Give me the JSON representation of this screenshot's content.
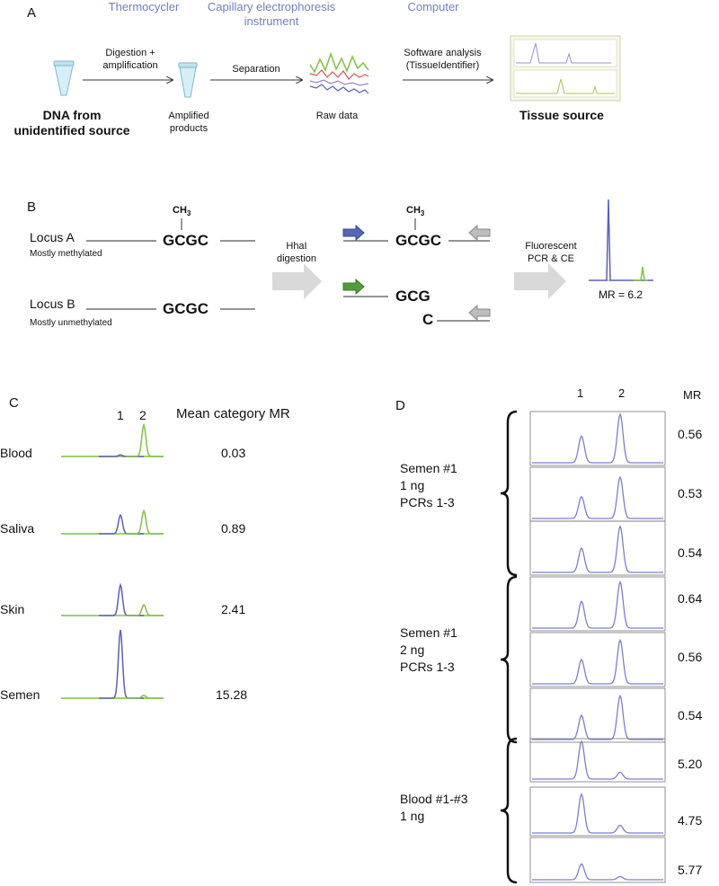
{
  "panelA": {
    "letter": "A",
    "stages": [
      "Thermocycler",
      "Capillary electrophoresis instrument",
      "Computer"
    ],
    "stage_line2": "instrument",
    "stage_ce_line1": "Capillary electrophoresis",
    "source_line1": "DNA from",
    "source_line2": "unidentified source",
    "step1_line1": "Digestion +",
    "step1_line2": "amplification",
    "products_line1": "Amplified",
    "products_line2": "products",
    "step2": "Separation",
    "raw_data": "Raw data",
    "step3_line1": "Software analysis",
    "step3_line2": "(TissueIdentifier)",
    "result": "Tissue source"
  },
  "panelB": {
    "letter": "B",
    "locusA": "Locus A",
    "locusA_sub": "Mostly methylated",
    "locusB": "Locus B",
    "locusB_sub": "Mostly unmethylated",
    "methyl": "CH",
    "methyl_sub": "3",
    "site": "GCGC",
    "cut_left": "GCG",
    "cut_right": "C",
    "digest_line1": "HhaI",
    "digest_line2": "digestion",
    "pcr_line1": "Fluorescent",
    "pcr_line2": "PCR & CE",
    "mr": "MR = 6.2"
  },
  "panelC": {
    "letter": "C",
    "peak1": "1",
    "peak2": "2",
    "header": "Mean category MR",
    "rows": [
      {
        "label": "Blood",
        "value": "0.03",
        "blue": 0.05,
        "green": 1.0
      },
      {
        "label": "Saliva",
        "value": "0.89",
        "blue": 0.65,
        "green": 0.8
      },
      {
        "label": "Skin",
        "value": "2.41",
        "blue": 0.85,
        "green": 0.3
      },
      {
        "label": "Semen",
        "value": "15.28",
        "blue": 1.0,
        "green": 0.04
      }
    ]
  },
  "panelD": {
    "letter": "D",
    "peak1": "1",
    "peak2": "2",
    "header": "MR",
    "groups": [
      {
        "lines": [
          "Semen #1",
          "1 ng",
          "PCRs 1-3"
        ],
        "values": [
          "0.56",
          "0.53",
          "0.54"
        ],
        "p1": [
          0.55,
          0.45,
          0.5
        ],
        "p2": [
          1.0,
          0.85,
          0.95
        ]
      },
      {
        "lines": [
          "Semen #1",
          "2 ng",
          "PCRs 1-3"
        ],
        "values": [
          "0.64",
          "0.56",
          "0.54"
        ],
        "p1": [
          0.55,
          0.5,
          0.5
        ],
        "p2": [
          0.95,
          0.9,
          0.9
        ]
      },
      {
        "lines": [
          "Blood #1-#3",
          "1 ng"
        ],
        "values": [
          "5.20",
          "4.75",
          "5.77"
        ],
        "p1": [
          1.0,
          0.9,
          0.4
        ],
        "p2": [
          0.18,
          0.18,
          0.08
        ]
      }
    ]
  },
  "colors": {
    "blue": "#5b5fb8",
    "green": "#7fc241",
    "stage": "#6f7fc7",
    "arrow": "#d9d9d9"
  }
}
